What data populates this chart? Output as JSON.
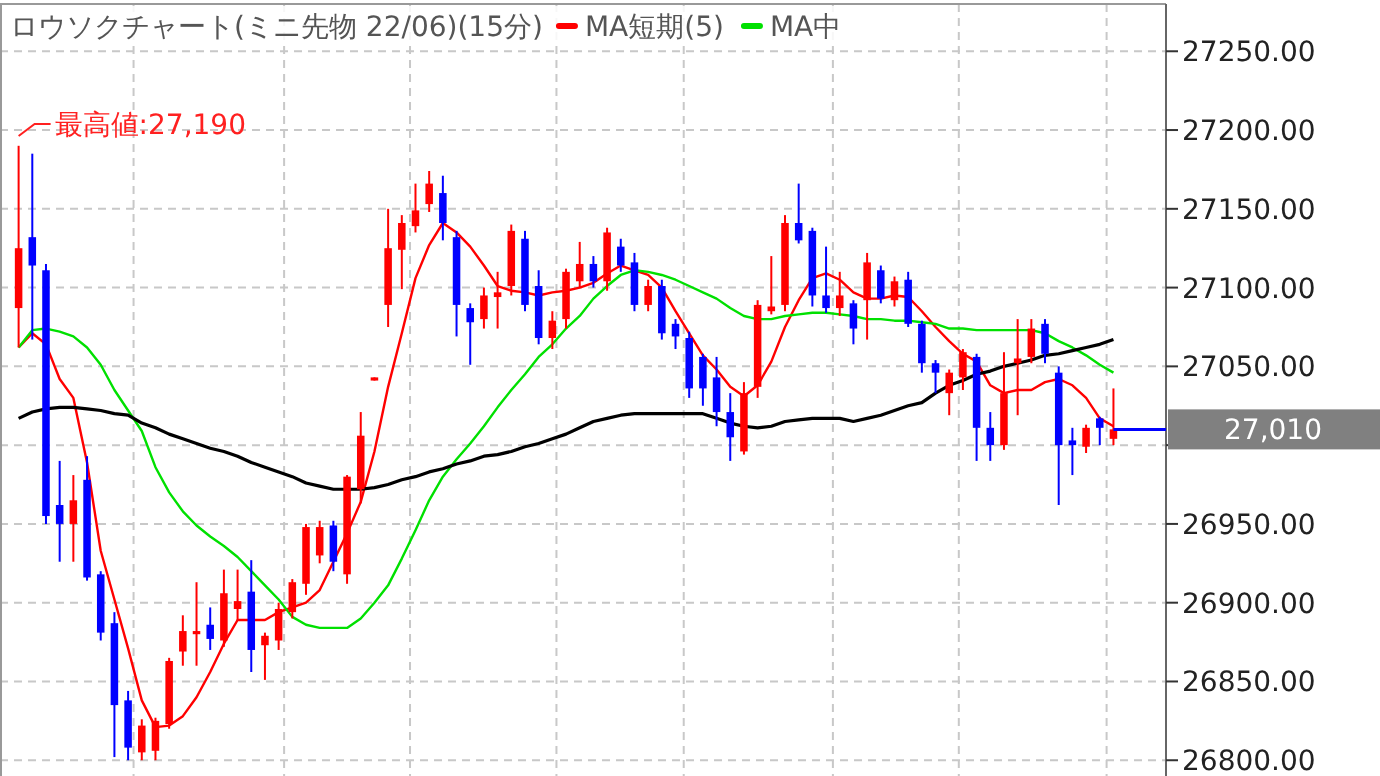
{
  "chart_data": {
    "type": "candlestick",
    "title": "ロウソクチャート(ミニ先物 22/06)(15分)",
    "categories": [
      null,
      null,
      null,
      null,
      null,
      null,
      null,
      null,
      null,
      null,
      null,
      null,
      null,
      null,
      null,
      null,
      null,
      null,
      null,
      null,
      null,
      null,
      null,
      null,
      null,
      null,
      null,
      null,
      null,
      null,
      null,
      null,
      null,
      null,
      null,
      null,
      null,
      null,
      null,
      null,
      null,
      null,
      null,
      null,
      null,
      null,
      null,
      null,
      null,
      null,
      null,
      null,
      null,
      null,
      null,
      null,
      null,
      null,
      null,
      null,
      null,
      null,
      null,
      null,
      null,
      null,
      null,
      null,
      null,
      null,
      null,
      null,
      null,
      null,
      null,
      null,
      null,
      null,
      null,
      null,
      null
    ],
    "ohlc": [
      [
        27087,
        27190,
        27062,
        27125
      ],
      [
        27132,
        27185,
        27067,
        27114
      ],
      [
        27111,
        27115,
        26950,
        26955
      ],
      [
        26962,
        26990,
        26926,
        26950
      ],
      [
        26950,
        26981,
        26926,
        26965
      ],
      [
        26978,
        26993,
        26914,
        26916
      ],
      [
        26918,
        26920,
        26876,
        26881
      ],
      [
        26887,
        26894,
        26802,
        26835
      ],
      [
        26838,
        26844,
        26800,
        26808
      ],
      [
        26805,
        26826,
        26800,
        26822
      ],
      [
        26806,
        26827,
        26800,
        26825
      ],
      [
        26823,
        26865,
        26820,
        26863
      ],
      [
        26869,
        26892,
        26860,
        26882
      ],
      [
        26880,
        26913,
        26860,
        26882
      ],
      [
        26886,
        26897,
        26870,
        26877
      ],
      [
        26876,
        26921,
        26872,
        26906
      ],
      [
        26896,
        26921,
        26889,
        26901
      ],
      [
        26907,
        26927,
        26856,
        26870
      ],
      [
        26873,
        26881,
        26851,
        26879
      ],
      [
        26876,
        26900,
        26870,
        26896
      ],
      [
        26894,
        26915,
        26890,
        26913
      ],
      [
        26912,
        26950,
        26905,
        26948
      ],
      [
        26930,
        26952,
        26925,
        26948
      ],
      [
        26949,
        26952,
        26920,
        26926
      ],
      [
        26918,
        26981,
        26912,
        26980
      ],
      [
        26972,
        27021,
        26963,
        27006
      ],
      [
        27041,
        27043,
        27041,
        27043
      ],
      [
        27089,
        27150,
        27075,
        27125
      ],
      [
        27124,
        27146,
        27099,
        27141
      ],
      [
        27139,
        27166,
        27135,
        27149
      ],
      [
        27153,
        27174,
        27148,
        27166
      ],
      [
        27160,
        27171,
        27130,
        27141
      ],
      [
        27132,
        27136,
        27069,
        27089
      ],
      [
        27087,
        27090,
        27051,
        27078
      ],
      [
        27080,
        27100,
        27074,
        27095
      ],
      [
        27094,
        27110,
        27074,
        27097
      ],
      [
        27101,
        27140,
        27095,
        27136
      ],
      [
        27131,
        27136,
        27085,
        27089
      ],
      [
        27101,
        27111,
        27064,
        27068
      ],
      [
        27068,
        27085,
        27061,
        27079
      ],
      [
        27080,
        27112,
        27074,
        27110
      ],
      [
        27104,
        27129,
        27100,
        27115
      ],
      [
        27115,
        27120,
        27100,
        27104
      ],
      [
        27104,
        27138,
        27098,
        27135
      ],
      [
        27126,
        27131,
        27110,
        27114
      ],
      [
        27116,
        27122,
        27085,
        27089
      ],
      [
        27089,
        27105,
        27085,
        27101
      ],
      [
        27101,
        27105,
        27067,
        27071
      ],
      [
        27077,
        27080,
        27061,
        27069
      ],
      [
        27068,
        27072,
        27030,
        27036
      ],
      [
        27056,
        27058,
        27025,
        27036
      ],
      [
        27043,
        27056,
        27012,
        27021
      ],
      [
        27021,
        27033,
        26990,
        27005
      ],
      [
        26996,
        27040,
        26994,
        27033
      ],
      [
        27037,
        27092,
        27030,
        27089
      ],
      [
        27085,
        27120,
        27083,
        27088
      ],
      [
        27089,
        27146,
        27085,
        27141
      ],
      [
        27141,
        27166,
        27128,
        27130
      ],
      [
        27136,
        27138,
        27088,
        27095
      ],
      [
        27095,
        27126,
        27084,
        27087
      ],
      [
        27087,
        27110,
        27082,
        27095
      ],
      [
        27090,
        27092,
        27064,
        27074
      ],
      [
        27092,
        27122,
        27067,
        27116
      ],
      [
        27111,
        27114,
        27090,
        27093
      ],
      [
        27092,
        27107,
        27088,
        27104
      ],
      [
        27105,
        27110,
        27075,
        27077
      ],
      [
        27077,
        27079,
        27046,
        27052
      ],
      [
        27052,
        27054,
        27033,
        27046
      ],
      [
        27033,
        27048,
        27019,
        27046
      ],
      [
        27043,
        27061,
        27035,
        27059
      ],
      [
        27056,
        27058,
        26990,
        27011
      ],
      [
        27011,
        27021,
        26990,
        27000
      ],
      [
        27000,
        27059,
        26997,
        27033
      ],
      [
        27052,
        27080,
        27019,
        27055
      ],
      [
        27056,
        27080,
        27052,
        27074
      ],
      [
        27077,
        27080,
        27052,
        27058
      ],
      [
        27046,
        27050,
        26962,
        27000
      ],
      [
        27003,
        27011,
        26981,
        27000
      ],
      [
        26999,
        27013,
        26995,
        27011
      ],
      [
        27017,
        27018,
        27000,
        27011
      ],
      [
        27004,
        27036,
        27000,
        27010
      ]
    ],
    "colors": [
      "#ff0000",
      "#0000ff",
      "#0000ff",
      "#0000ff",
      "#ff0000",
      "#0000ff",
      "#0000ff",
      "#0000ff",
      "#0000ff",
      "#ff0000",
      "#ff0000",
      "#ff0000",
      "#ff0000",
      "#ff0000",
      "#0000ff",
      "#ff0000",
      "#ff0000",
      "#0000ff",
      "#ff0000",
      "#ff0000",
      "#ff0000",
      "#ff0000",
      "#ff0000",
      "#0000ff",
      "#ff0000",
      "#ff0000",
      "#ff0000",
      "#ff0000",
      "#ff0000",
      "#ff0000",
      "#ff0000",
      "#0000ff",
      "#0000ff",
      "#0000ff",
      "#ff0000",
      "#ff0000",
      "#ff0000",
      "#0000ff",
      "#0000ff",
      "#ff0000",
      "#ff0000",
      "#ff0000",
      "#0000ff",
      "#ff0000",
      "#0000ff",
      "#0000ff",
      "#ff0000",
      "#0000ff",
      "#0000ff",
      "#0000ff",
      "#0000ff",
      "#0000ff",
      "#0000ff",
      "#ff0000",
      "#ff0000",
      "#ff0000",
      "#ff0000",
      "#0000ff",
      "#0000ff",
      "#0000ff",
      "#ff0000",
      "#0000ff",
      "#ff0000",
      "#0000ff",
      "#ff0000",
      "#0000ff",
      "#0000ff",
      "#0000ff",
      "#ff0000",
      "#ff0000",
      "#0000ff",
      "#0000ff",
      "#ff0000",
      "#ff0000",
      "#ff0000",
      "#0000ff",
      "#0000ff",
      "#0000ff",
      "#ff0000",
      "#0000ff",
      "#ff0000"
    ],
    "series": [
      {
        "name": "MA短期(5)",
        "type": "line",
        "color": "#ff0000",
        "values": [
          27062,
          27071,
          27064,
          27042,
          27030,
          26989,
          26933,
          26902,
          26871,
          26838,
          26821,
          26822,
          26828,
          26840,
          26856,
          26874,
          26889,
          26889,
          26889,
          26894,
          26897,
          26900,
          26908,
          26926,
          26944,
          26964,
          26996,
          27037,
          27071,
          27106,
          27127,
          27141,
          27135,
          27126,
          27114,
          27101,
          27098,
          27097,
          27095,
          27097,
          27098,
          27100,
          27103,
          27109,
          27114,
          27111,
          27108,
          27100,
          27085,
          27071,
          27057,
          27048,
          27037,
          27031,
          27038,
          27053,
          27075,
          27092,
          27106,
          27109,
          27105,
          27097,
          27093,
          27093,
          27095,
          27094,
          27085,
          27075,
          27066,
          27058,
          27053,
          27038,
          27033,
          27035,
          27035,
          27040,
          27042,
          27038,
          27030,
          27017,
          27012
        ]
      },
      {
        "name": "MA中",
        "type": "line",
        "color": "#00e000",
        "values": [
          27062,
          27073,
          27074,
          27072,
          27069,
          27062,
          27051,
          27035,
          27022,
          27009,
          26986,
          26970,
          26958,
          26949,
          26942,
          26936,
          26929,
          26920,
          26911,
          26902,
          26891,
          26886,
          26884,
          26884,
          26884,
          26890,
          26900,
          26911,
          26928,
          26946,
          26965,
          26980,
          26991,
          27001,
          27012,
          27024,
          27035,
          27045,
          27056,
          27064,
          27074,
          27082,
          27093,
          27101,
          27108,
          27111,
          27110,
          27108,
          27105,
          27101,
          27097,
          27093,
          27087,
          27082,
          27080,
          27080,
          27082,
          27083,
          27084,
          27084,
          27083,
          27082,
          27080,
          27080,
          27079,
          27079,
          27078,
          27077,
          27074,
          27074,
          27073,
          27073,
          27073,
          27073,
          27073,
          27071,
          27066,
          27062,
          27057,
          27051,
          27046
        ]
      },
      {
        "type": "line",
        "color": "#000000",
        "values": [
          27017,
          27021,
          27023,
          27024,
          27024,
          27023,
          27022,
          27020,
          27019,
          27014,
          27011,
          27007,
          27004,
          27001,
          26998,
          26996,
          26993,
          26989,
          26986,
          26983,
          26980,
          26976,
          26974,
          26972,
          26972,
          26972,
          26973,
          26975,
          26978,
          26980,
          26983,
          26985,
          26988,
          26990,
          26993,
          26994,
          26996,
          26999,
          27001,
          27004,
          27007,
          27011,
          27015,
          27017,
          27019,
          27020,
          27020,
          27020,
          27020,
          27020,
          27020,
          27017,
          27014,
          27012,
          27011,
          27012,
          27015,
          27016,
          27017,
          27017,
          27017,
          27015,
          27017,
          27019,
          27022,
          27025,
          27027,
          27033,
          27038,
          27041,
          27045,
          27047,
          27050,
          27052,
          27054,
          27057,
          27058,
          27060,
          27062,
          27064,
          27067
        ]
      }
    ],
    "ylim": [
      26790,
      27280
    ],
    "yticks": [
      {
        "value": 26800,
        "label": "26800.00"
      },
      {
        "value": 26850,
        "label": "26850.00"
      },
      {
        "value": 26900,
        "label": "26900.00"
      },
      {
        "value": 26950,
        "label": "26950.00"
      },
      {
        "value": 27000,
        "label": null
      },
      {
        "value": 27050,
        "label": "27050.00"
      },
      {
        "value": 27100,
        "label": "27100.00"
      },
      {
        "value": 27150,
        "label": "27150.00"
      },
      {
        "value": 27200,
        "label": "27200.00"
      },
      {
        "value": 27250,
        "label": "27250.00"
      }
    ],
    "annotations": [
      "最高値:27,190",
      "27,010"
    ],
    "grid": "y",
    "legend": "top",
    "tick_labels": "y"
  }
}
